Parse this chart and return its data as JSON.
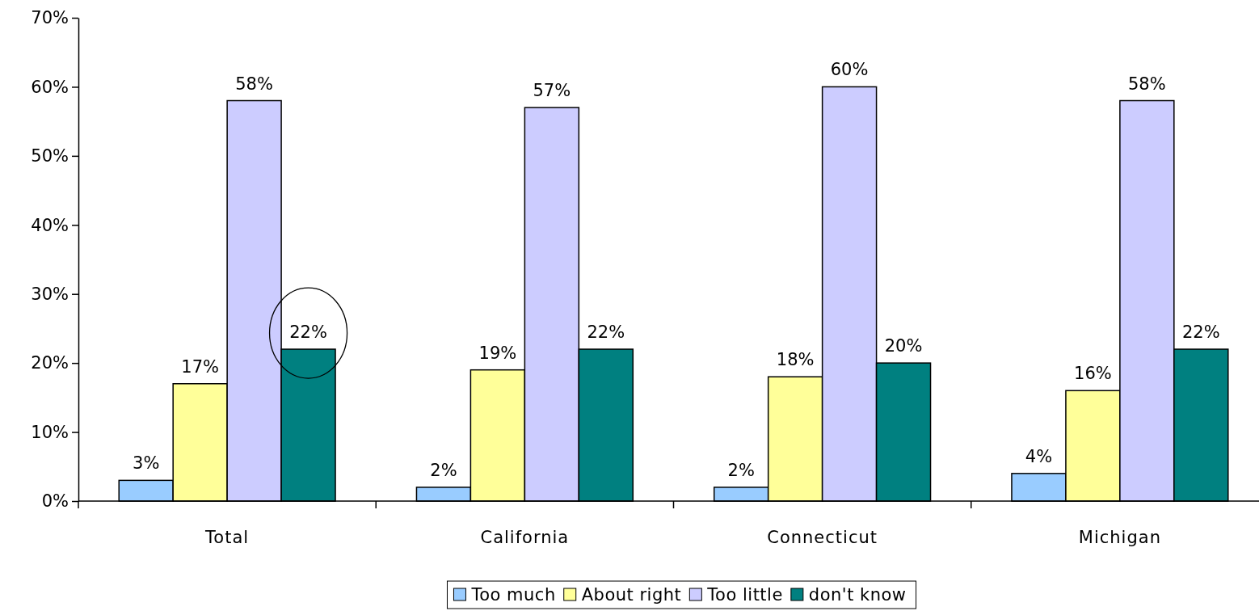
{
  "chart_data": {
    "type": "bar",
    "categories": [
      "Total",
      "California",
      "Connecticut",
      "Michigan"
    ],
    "series": [
      {
        "name": "Too much",
        "color": "#99ccff",
        "values": [
          3,
          2,
          2,
          4
        ],
        "value_labels": [
          "3%",
          "2%",
          "2%",
          "4%"
        ]
      },
      {
        "name": "About right",
        "color": "#ffff99",
        "values": [
          17,
          19,
          18,
          16
        ],
        "value_labels": [
          "17%",
          "19%",
          "18%",
          "16%"
        ]
      },
      {
        "name": "Too little",
        "color": "#ccccff",
        "values": [
          58,
          57,
          60,
          58
        ],
        "value_labels": [
          "58%",
          "57%",
          "60%",
          "58%"
        ]
      },
      {
        "name": "don't know",
        "color": "#008080",
        "values": [
          22,
          22,
          20,
          22
        ],
        "value_labels": [
          "22%",
          "22%",
          "20%",
          "22%"
        ]
      }
    ],
    "ylim": [
      0,
      70
    ],
    "yticks": [
      {
        "value": 0,
        "label": "0%"
      },
      {
        "value": 10,
        "label": "10%"
      },
      {
        "value": 20,
        "label": "20%"
      },
      {
        "value": 30,
        "label": "30%"
      },
      {
        "value": 40,
        "label": "40%"
      },
      {
        "value": 50,
        "label": "50%"
      },
      {
        "value": 60,
        "label": "60%"
      },
      {
        "value": 70,
        "label": "70%"
      }
    ],
    "grid": false,
    "legend": "bottom"
  }
}
